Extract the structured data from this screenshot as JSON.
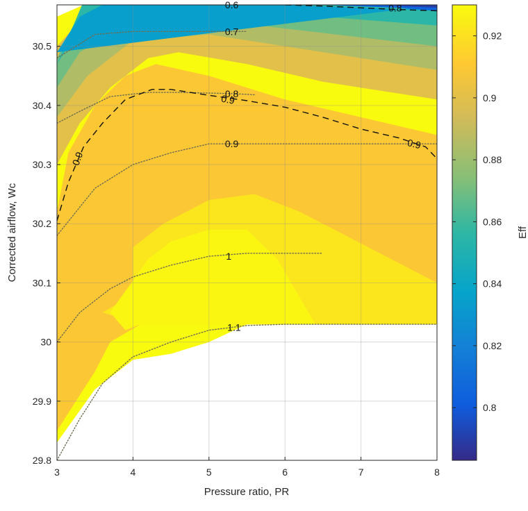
{
  "chart_data": {
    "type": "contour",
    "xlabel": "Pressure ratio, PR",
    "ylabel": "Corrected airflow, Wc",
    "colorbar_label": "Eff",
    "xlim": [
      3,
      8
    ],
    "ylim": [
      29.8,
      30.57
    ],
    "xticks": [
      "3",
      "4",
      "5",
      "6",
      "7",
      "8"
    ],
    "yticks": [
      "29.8",
      "29.9",
      "30",
      "30.1",
      "30.2",
      "30.3",
      "30.4",
      "30.5"
    ],
    "colorbar_range": [
      0.783,
      0.93
    ],
    "colorbar_ticks": [
      "0.8",
      "0.82",
      "0.84",
      "0.86",
      "0.88",
      "0.9",
      "0.92"
    ],
    "grid": true,
    "colormap": "parula",
    "filled_regions": [
      {
        "level": 0.93,
        "points": [
          [
            3.0,
            30.08
          ],
          [
            3.0,
            30.55
          ],
          [
            3.35,
            30.57
          ],
          [
            8.0,
            30.57
          ],
          [
            8.0,
            30.03
          ],
          [
            5.5,
            30.03
          ],
          [
            5.0,
            30.0
          ],
          [
            4.5,
            29.98
          ],
          [
            4.0,
            29.97
          ],
          [
            3.5,
            29.92
          ],
          [
            3.0,
            29.83
          ]
        ]
      },
      {
        "level": 0.91,
        "points": [
          [
            3.0,
            30.22
          ],
          [
            3.15,
            30.32
          ],
          [
            3.5,
            30.4
          ],
          [
            3.9,
            30.45
          ],
          [
            4.3,
            30.47
          ],
          [
            5.0,
            30.45
          ],
          [
            6.0,
            30.41
          ],
          [
            7.0,
            30.38
          ],
          [
            8.0,
            30.35
          ],
          [
            8.0,
            30.03
          ],
          [
            4.1,
            30.03
          ],
          [
            3.7,
            30.0
          ],
          [
            3.5,
            29.95
          ],
          [
            3.0,
            29.85
          ]
        ]
      },
      {
        "level": 0.922,
        "points": [
          [
            3.6,
            30.05
          ],
          [
            4.0,
            30.08
          ],
          [
            4.0,
            30.16
          ],
          [
            4.4,
            30.2
          ],
          [
            5.0,
            30.24
          ],
          [
            5.6,
            30.25
          ],
          [
            6.2,
            30.22
          ],
          [
            6.8,
            30.18
          ],
          [
            8.0,
            30.1
          ],
          [
            8.0,
            30.03
          ],
          [
            4.1,
            30.03
          ]
        ]
      },
      {
        "level": 0.928,
        "points": [
          [
            3.7,
            30.05
          ],
          [
            4.2,
            30.14
          ],
          [
            4.5,
            30.17
          ],
          [
            5.0,
            30.19
          ],
          [
            5.5,
            30.19
          ],
          [
            5.9,
            30.14
          ],
          [
            6.4,
            30.03
          ],
          [
            4.1,
            30.03
          ],
          [
            3.9,
            30.02
          ]
        ]
      },
      {
        "level": 0.9,
        "points": [
          [
            3.0,
            30.3
          ],
          [
            3.3,
            30.37
          ],
          [
            3.7,
            30.43
          ],
          [
            4.2,
            30.48
          ],
          [
            4.6,
            30.49
          ],
          [
            5.5,
            30.47
          ],
          [
            6.5,
            30.44
          ],
          [
            7.5,
            30.42
          ],
          [
            8.0,
            30.41
          ],
          [
            8.0,
            30.57
          ],
          [
            3.5,
            30.57
          ],
          [
            3.0,
            30.5
          ]
        ]
      },
      {
        "level": 0.885,
        "points": [
          [
            3.0,
            30.38
          ],
          [
            3.4,
            30.45
          ],
          [
            4.0,
            30.51
          ],
          [
            5.0,
            30.52
          ],
          [
            6.0,
            30.5
          ],
          [
            7.0,
            30.48
          ],
          [
            8.0,
            30.46
          ],
          [
            8.0,
            30.57
          ],
          [
            3.4,
            30.57
          ],
          [
            3.0,
            30.45
          ]
        ]
      },
      {
        "level": 0.87,
        "points": [
          [
            3.0,
            30.43
          ],
          [
            3.3,
            30.49
          ],
          [
            4.0,
            30.54
          ],
          [
            5.0,
            30.545
          ],
          [
            6.0,
            30.53
          ],
          [
            7.0,
            30.515
          ],
          [
            8.0,
            30.5
          ],
          [
            8.0,
            30.57
          ],
          [
            3.35,
            30.57
          ],
          [
            3.0,
            30.48
          ]
        ]
      },
      {
        "level": 0.855,
        "points": [
          [
            3.0,
            30.47
          ],
          [
            3.3,
            30.53
          ],
          [
            4.0,
            30.56
          ],
          [
            5.0,
            30.565
          ],
          [
            6.0,
            30.555
          ],
          [
            7.0,
            30.545
          ],
          [
            8.0,
            30.535
          ],
          [
            8.0,
            30.57
          ],
          [
            3.33,
            30.57
          ]
        ]
      },
      {
        "level": 0.835,
        "points": [
          [
            3.0,
            30.49
          ],
          [
            3.3,
            30.55
          ],
          [
            3.6,
            30.57
          ],
          [
            6.0,
            30.57
          ],
          [
            7.0,
            30.565
          ],
          [
            8.0,
            30.56
          ],
          [
            8.0,
            30.57
          ]
        ]
      },
      {
        "level": 0.805,
        "points": [
          [
            6.5,
            30.57
          ],
          [
            7.5,
            30.565
          ],
          [
            8.0,
            30.56
          ],
          [
            8.0,
            30.57
          ]
        ]
      },
      {
        "level": 0.79,
        "points": [
          [
            7.2,
            30.57
          ],
          [
            8.0,
            30.565
          ],
          [
            8.0,
            30.57
          ]
        ]
      }
    ],
    "dashed_contours": [
      {
        "label": "0.9",
        "points": [
          [
            3.0,
            30.205
          ],
          [
            3.15,
            30.27
          ],
          [
            3.35,
            30.33
          ],
          [
            3.6,
            30.37
          ],
          [
            3.9,
            30.41
          ],
          [
            4.25,
            30.427
          ],
          [
            4.5,
            30.427
          ],
          [
            5.0,
            30.417
          ],
          [
            5.5,
            30.408
          ],
          [
            6.0,
            30.397
          ],
          [
            6.5,
            30.38
          ],
          [
            7.0,
            30.36
          ],
          [
            7.5,
            30.345
          ],
          [
            7.85,
            30.33
          ],
          [
            8.0,
            30.31
          ]
        ]
      },
      {
        "label": "0.8",
        "points": [
          [
            6.0,
            30.57
          ],
          [
            6.5,
            30.568
          ],
          [
            7.0,
            30.565
          ],
          [
            7.5,
            30.562
          ],
          [
            8.0,
            30.56
          ]
        ]
      }
    ],
    "dotted_contours": [
      {
        "label": "0.6",
        "points": [
          [
            4.9,
            30.57
          ],
          [
            5.5,
            30.57
          ],
          [
            6.0,
            30.57
          ]
        ]
      },
      {
        "label": "0.7",
        "points": [
          [
            3.0,
            30.48
          ],
          [
            3.5,
            30.52
          ],
          [
            4.0,
            30.525
          ],
          [
            5.0,
            30.525
          ],
          [
            5.5,
            30.525
          ]
        ]
      },
      {
        "label": "0.8",
        "points": [
          [
            3.0,
            30.37
          ],
          [
            3.3,
            30.39
          ],
          [
            3.7,
            30.415
          ],
          [
            4.2,
            30.422
          ],
          [
            4.6,
            30.422
          ],
          [
            5.3,
            30.42
          ],
          [
            5.6,
            30.418
          ]
        ]
      },
      {
        "label": "0.9",
        "points": [
          [
            3.0,
            30.18
          ],
          [
            3.5,
            30.26
          ],
          [
            4.0,
            30.3
          ],
          [
            4.5,
            30.32
          ],
          [
            5.0,
            30.335
          ],
          [
            6.0,
            30.335
          ],
          [
            7.0,
            30.335
          ],
          [
            8.0,
            30.335
          ]
        ]
      },
      {
        "label": "1",
        "points": [
          [
            3.0,
            30.0
          ],
          [
            3.3,
            30.05
          ],
          [
            3.7,
            30.09
          ],
          [
            4.0,
            30.11
          ],
          [
            4.5,
            30.13
          ],
          [
            5.0,
            30.145
          ],
          [
            5.5,
            30.15
          ],
          [
            6.0,
            30.15
          ],
          [
            6.5,
            30.15
          ]
        ]
      },
      {
        "label": "1.1",
        "points": [
          [
            3.0,
            29.8
          ],
          [
            3.3,
            29.87
          ],
          [
            3.6,
            29.93
          ],
          [
            4.0,
            29.975
          ],
          [
            4.5,
            30.0
          ],
          [
            5.0,
            30.02
          ],
          [
            5.5,
            30.028
          ],
          [
            6.0,
            30.03
          ],
          [
            8.0,
            30.03
          ]
        ]
      }
    ],
    "contour_labels": [
      {
        "text": "0.6",
        "x": 5.3,
        "y": 30.57,
        "angle": 0
      },
      {
        "text": "0.8",
        "x": 7.45,
        "y": 30.565,
        "angle": 0
      },
      {
        "text": "0.7",
        "x": 5.3,
        "y": 30.525,
        "angle": 0
      },
      {
        "text": "0.8",
        "x": 5.3,
        "y": 30.42,
        "angle": 0
      },
      {
        "text": "0.9",
        "x": 5.25,
        "y": 30.41,
        "angle": 10
      },
      {
        "text": "0.9",
        "x": 5.3,
        "y": 30.335,
        "angle": 0
      },
      {
        "text": "0.9",
        "x": 7.7,
        "y": 30.335,
        "angle": 14
      },
      {
        "text": "0.9",
        "x": 3.27,
        "y": 30.31,
        "angle": -70
      },
      {
        "text": "1",
        "x": 5.26,
        "y": 30.145,
        "angle": 0
      },
      {
        "text": "1.1",
        "x": 5.33,
        "y": 30.025,
        "angle": 0
      }
    ]
  }
}
